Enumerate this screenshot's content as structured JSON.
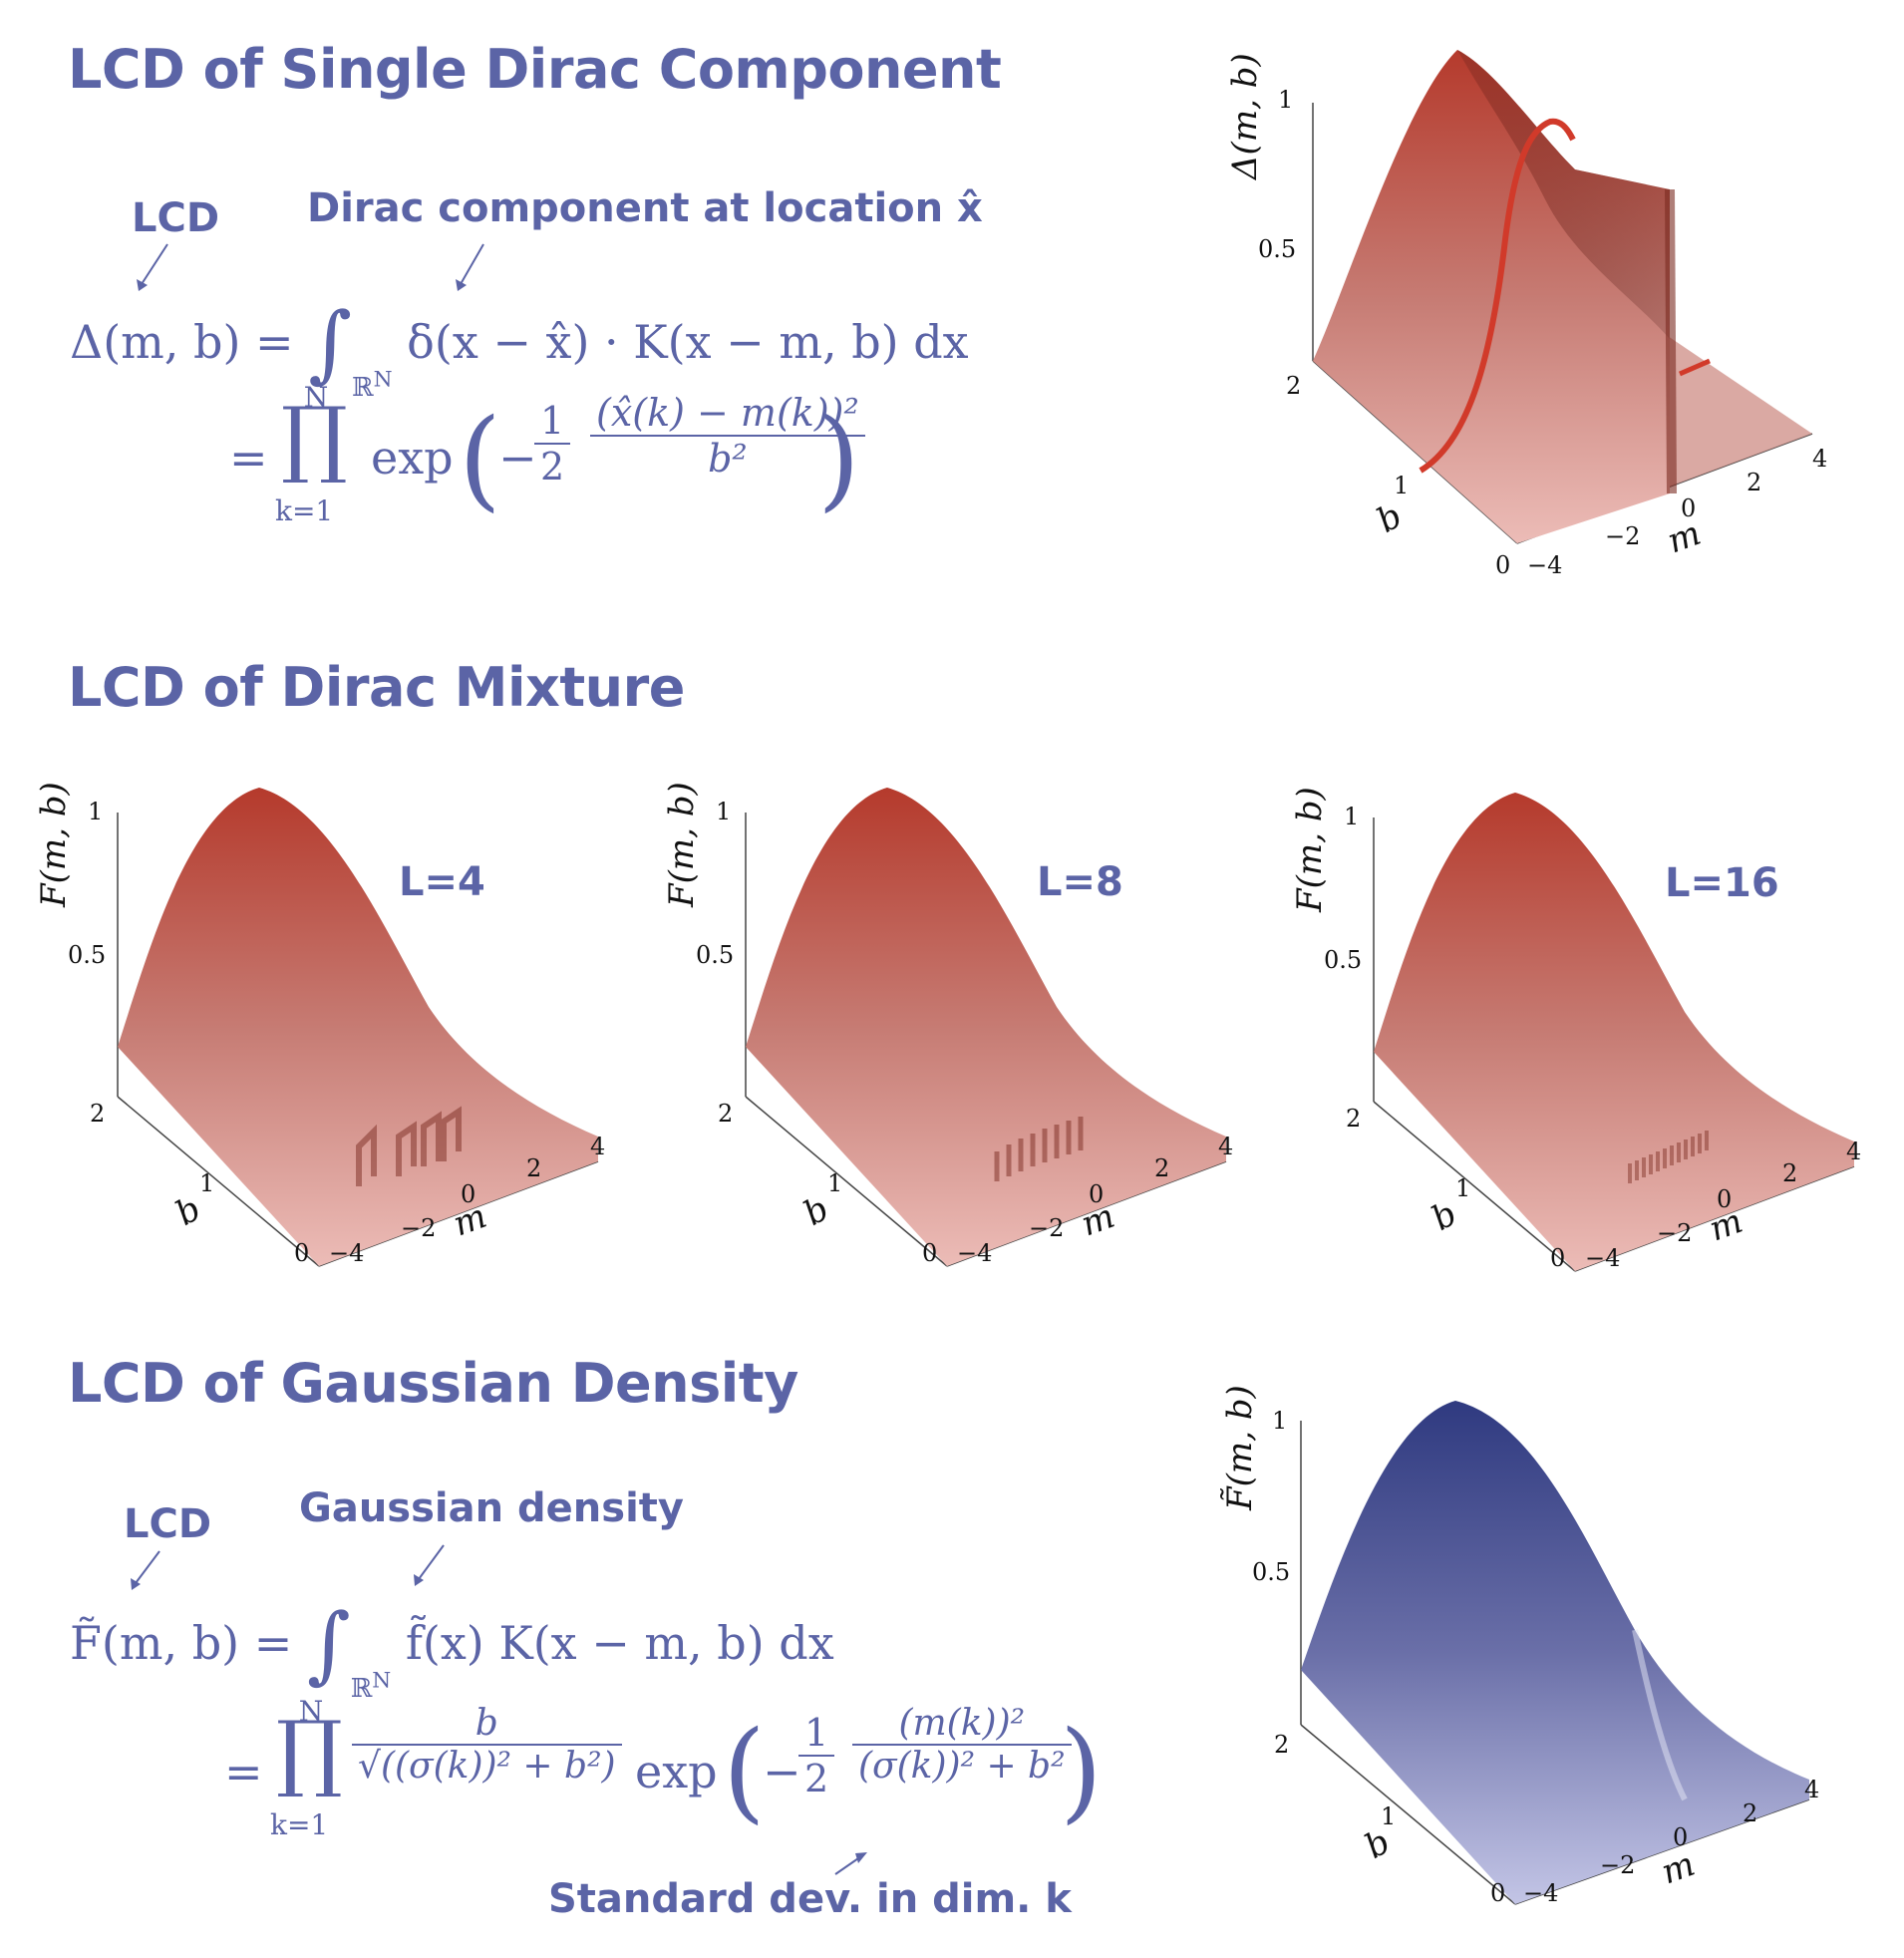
{
  "sections": {
    "single": {
      "title": "LCD of Single Dirac Component",
      "anno_lcd": "LCD",
      "anno_dirac": "Dirac component at location x̂",
      "eq1_lhs": "Δ(m, b) =",
      "eq1_int": "∫",
      "eq1_domain": "ℝ",
      "eq1_domain_sup": "N",
      "eq1_rhs": "δ(x − x̂) · K(x − m, b) dx",
      "eq2_eq": "=",
      "eq2_prod": "∏",
      "eq2_upper": "N",
      "eq2_lower": "k=1",
      "eq2_exp": "exp",
      "eq2_minus": "−",
      "eq2_half_n": "1",
      "eq2_half_d": "2",
      "eq2_num": "(x̂(k) − m(k))²",
      "eq2_den": "b²"
    },
    "mixture": {
      "title": "LCD of Dirac Mixture",
      "labels": [
        "L=4",
        "L=8",
        "L=16"
      ]
    },
    "gaussian": {
      "title": "LCD of Gaussian Density",
      "anno_lcd": "LCD",
      "anno_gauss": "Gaussian density",
      "anno_std": "Standard dev. in dim. k",
      "eq1_lhs": "F̃(m, b) =",
      "eq1_int": "∫",
      "eq1_domain": "ℝ",
      "eq1_domain_sup": "N",
      "eq1_rhs": "f̃(x) K(x − m, b) dx",
      "eq2_eq": "=",
      "eq2_prod": "∏",
      "eq2_upper": "N",
      "eq2_lower": "k=1",
      "eq2_frac1_num": "b",
      "eq2_frac1_den": "√((σ(k))² + b²)",
      "eq2_exp": "exp",
      "eq2_minus": "−",
      "eq2_half_n": "1",
      "eq2_half_d": "2",
      "eq2_num": "(m(k))²",
      "eq2_den": "(σ(k))² + b²"
    }
  },
  "plots": {
    "ylabel_delta": "Δ(m, b)",
    "ylabel_F": "F(m, b)",
    "ylabel_Ftilde": "F̃(m, b)",
    "ytick_1": "1",
    "ytick_05": "0.5",
    "b_ticks": [
      "2",
      "1",
      "0"
    ],
    "m_ticks": [
      "−4",
      "−2",
      "0",
      "2",
      "4"
    ],
    "b_label": "b",
    "m_label": "m"
  },
  "colors": {
    "text": "#5b64a6",
    "red_surface_top": "#b53a2c",
    "red_surface_bottom": "#e8b1ab",
    "blue_surface_top": "#2f3a80",
    "blue_surface_bottom": "#b9bce0"
  }
}
